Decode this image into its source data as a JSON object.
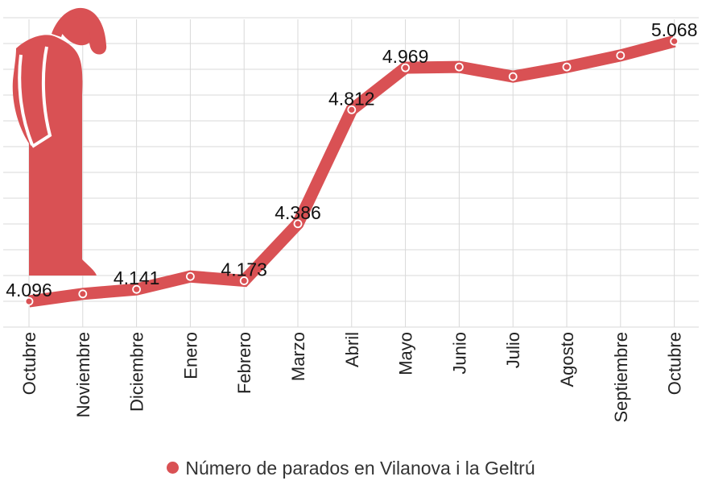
{
  "chart_data": {
    "type": "line",
    "categories": [
      "Octubre",
      "Noviembre",
      "Diciembre",
      "Enero",
      "Febrero",
      "Marzo",
      "Abril",
      "Mayo",
      "Junio",
      "Julio",
      "Agosto",
      "Septiembre",
      "Octubre"
    ],
    "series": [
      {
        "name": "Número de parados en Vilanova i la Geltrú",
        "values": [
          4096,
          4124,
          4141,
          4189,
          4173,
          4386,
          4812,
          4969,
          4972,
          4936,
          4972,
          5015,
          5068
        ],
        "labels": [
          "4.096",
          "",
          "4.141",
          "",
          "4.173",
          "4.386",
          "4.812",
          "4.969",
          "",
          "",
          "",
          "",
          "5.068"
        ]
      }
    ],
    "ylim": [
      4000,
      5150
    ],
    "grid": true,
    "legend": "bottom-center"
  },
  "colors": {
    "line": "#d95154",
    "grid": "#d9d9d9",
    "icon": "#d95154"
  },
  "decoration": {
    "icon": "standing-person-icon"
  }
}
